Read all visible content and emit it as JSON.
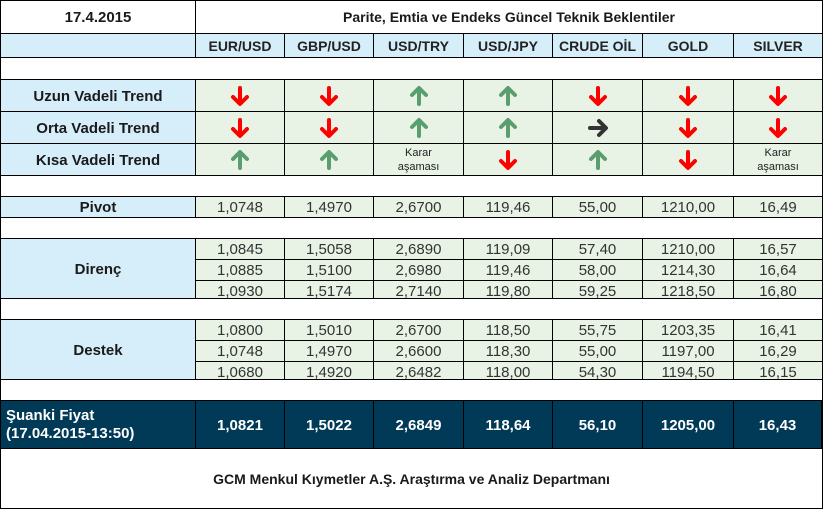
{
  "title": {
    "date": "17.4.2015",
    "heading": "Parite, Emtia ve Endeks Güncel Teknik Beklentiler"
  },
  "columns": [
    "EUR/USD",
    "GBP/USD",
    "USD/TRY",
    "USD/JPY",
    "CRUDE OİL",
    "GOLD",
    "SILVER"
  ],
  "colors": {
    "label_bg": "#d6eefa",
    "cell_bg": "#e8f3e6",
    "down": "#ff0000",
    "up": "#5a9e6f",
    "neutral": "#333333",
    "current_bg": "#003a57"
  },
  "trends": [
    {
      "label": "Uzun Vadeli Trend",
      "values": [
        "down",
        "down",
        "up",
        "up",
        "down",
        "down",
        "down"
      ]
    },
    {
      "label": "Orta Vadeli Trend",
      "values": [
        "down",
        "down",
        "up",
        "up",
        "right",
        "down",
        "down"
      ]
    },
    {
      "label": "Kısa Vadeli Trend",
      "values": [
        "up",
        "up",
        "karar",
        "down",
        "up",
        "down",
        "karar"
      ]
    }
  ],
  "karar_text": {
    "line1": "Karar",
    "line2": "aşaması"
  },
  "pivot": {
    "label": "Pivot",
    "values": [
      "1,0748",
      "1,4970",
      "2,6700",
      "119,46",
      "55,00",
      "1210,00",
      "16,49"
    ]
  },
  "direnc": {
    "label": "Direnç",
    "rows": [
      [
        "1,0845",
        "1,5058",
        "2,6890",
        "119,09",
        "57,40",
        "1210,00",
        "16,57"
      ],
      [
        "1,0885",
        "1,5100",
        "2,6980",
        "119,46",
        "58,00",
        "1214,30",
        "16,64"
      ],
      [
        "1,0930",
        "1,5174",
        "2,7140",
        "119,80",
        "59,25",
        "1218,50",
        "16,80"
      ]
    ]
  },
  "destek": {
    "label": "Destek",
    "rows": [
      [
        "1,0800",
        "1,5010",
        "2,6700",
        "118,50",
        "55,75",
        "1203,35",
        "16,41"
      ],
      [
        "1,0748",
        "1,4970",
        "2,6600",
        "118,30",
        "55,00",
        "1197,00",
        "16,29"
      ],
      [
        "1,0680",
        "1,4920",
        "2,6482",
        "118,00",
        "54,30",
        "1194,50",
        "16,15"
      ]
    ]
  },
  "current": {
    "label_line1": "Şuanki Fiyat",
    "label_line2": "(17.04.2015-13:50)",
    "values": [
      "1,0821",
      "1,5022",
      "2,6849",
      "118,64",
      "56,10",
      "1205,00",
      "16,43"
    ]
  },
  "footer": "GCM Menkul Kıymetler A.Ş. Araştırma ve Analiz Departmanı"
}
